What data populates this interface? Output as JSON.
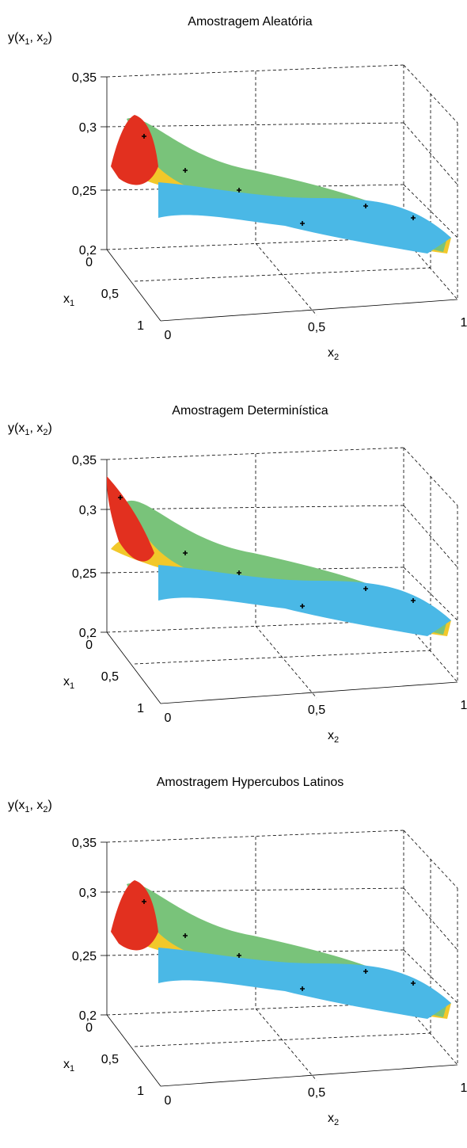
{
  "chart_data": [
    {
      "type": "surface",
      "title": "Amostragem Aleatória",
      "zlabel": "y(x1, x2)",
      "xlabel": "x1",
      "ylabel": "x2",
      "x1_ticks": [
        "0",
        "0,5",
        "1"
      ],
      "x2_ticks": [
        "0",
        "0,5",
        "1"
      ],
      "z_ticks": [
        "0,2",
        "0,25",
        "0,3",
        "0,35"
      ],
      "x1_range": [
        0,
        1
      ],
      "x2_range": [
        0,
        1
      ],
      "z_range": [
        0.2,
        0.35
      ],
      "grid": true,
      "colormap": "jet",
      "marker": "plus",
      "marker_color": "#000000",
      "surface_max": 0.32,
      "surface_min": 0.19
    },
    {
      "type": "surface",
      "title": "Amostragem Determinística",
      "zlabel": "y(x1, x2)",
      "xlabel": "x1",
      "ylabel": "x2",
      "x1_ticks": [
        "0",
        "0,5",
        "1"
      ],
      "x2_ticks": [
        "0",
        "0,5",
        "1"
      ],
      "z_ticks": [
        "0,2",
        "0,25",
        "0,3",
        "0,35"
      ],
      "x1_range": [
        0,
        1
      ],
      "x2_range": [
        0,
        1
      ],
      "z_range": [
        0.2,
        0.35
      ],
      "grid": true,
      "colormap": "jet",
      "marker": "plus",
      "marker_color": "#000000",
      "surface_max": 0.345,
      "surface_min": 0.19
    },
    {
      "type": "surface",
      "title": "Amostragem Hypercubos Latinos",
      "zlabel": "y(x1, x2)",
      "xlabel": "x1",
      "ylabel": "x2",
      "x1_ticks": [
        "0",
        "0,5",
        "1"
      ],
      "x2_ticks": [
        "0",
        "0,5",
        "1"
      ],
      "z_ticks": [
        "0,2",
        "0,25",
        "0,3",
        "0,35"
      ],
      "x1_range": [
        0,
        1
      ],
      "x2_range": [
        0,
        1
      ],
      "z_range": [
        0.2,
        0.35
      ],
      "grid": true,
      "colormap": "jet",
      "marker": "plus",
      "marker_color": "#000000",
      "surface_max": 0.32,
      "surface_min": 0.19
    }
  ]
}
